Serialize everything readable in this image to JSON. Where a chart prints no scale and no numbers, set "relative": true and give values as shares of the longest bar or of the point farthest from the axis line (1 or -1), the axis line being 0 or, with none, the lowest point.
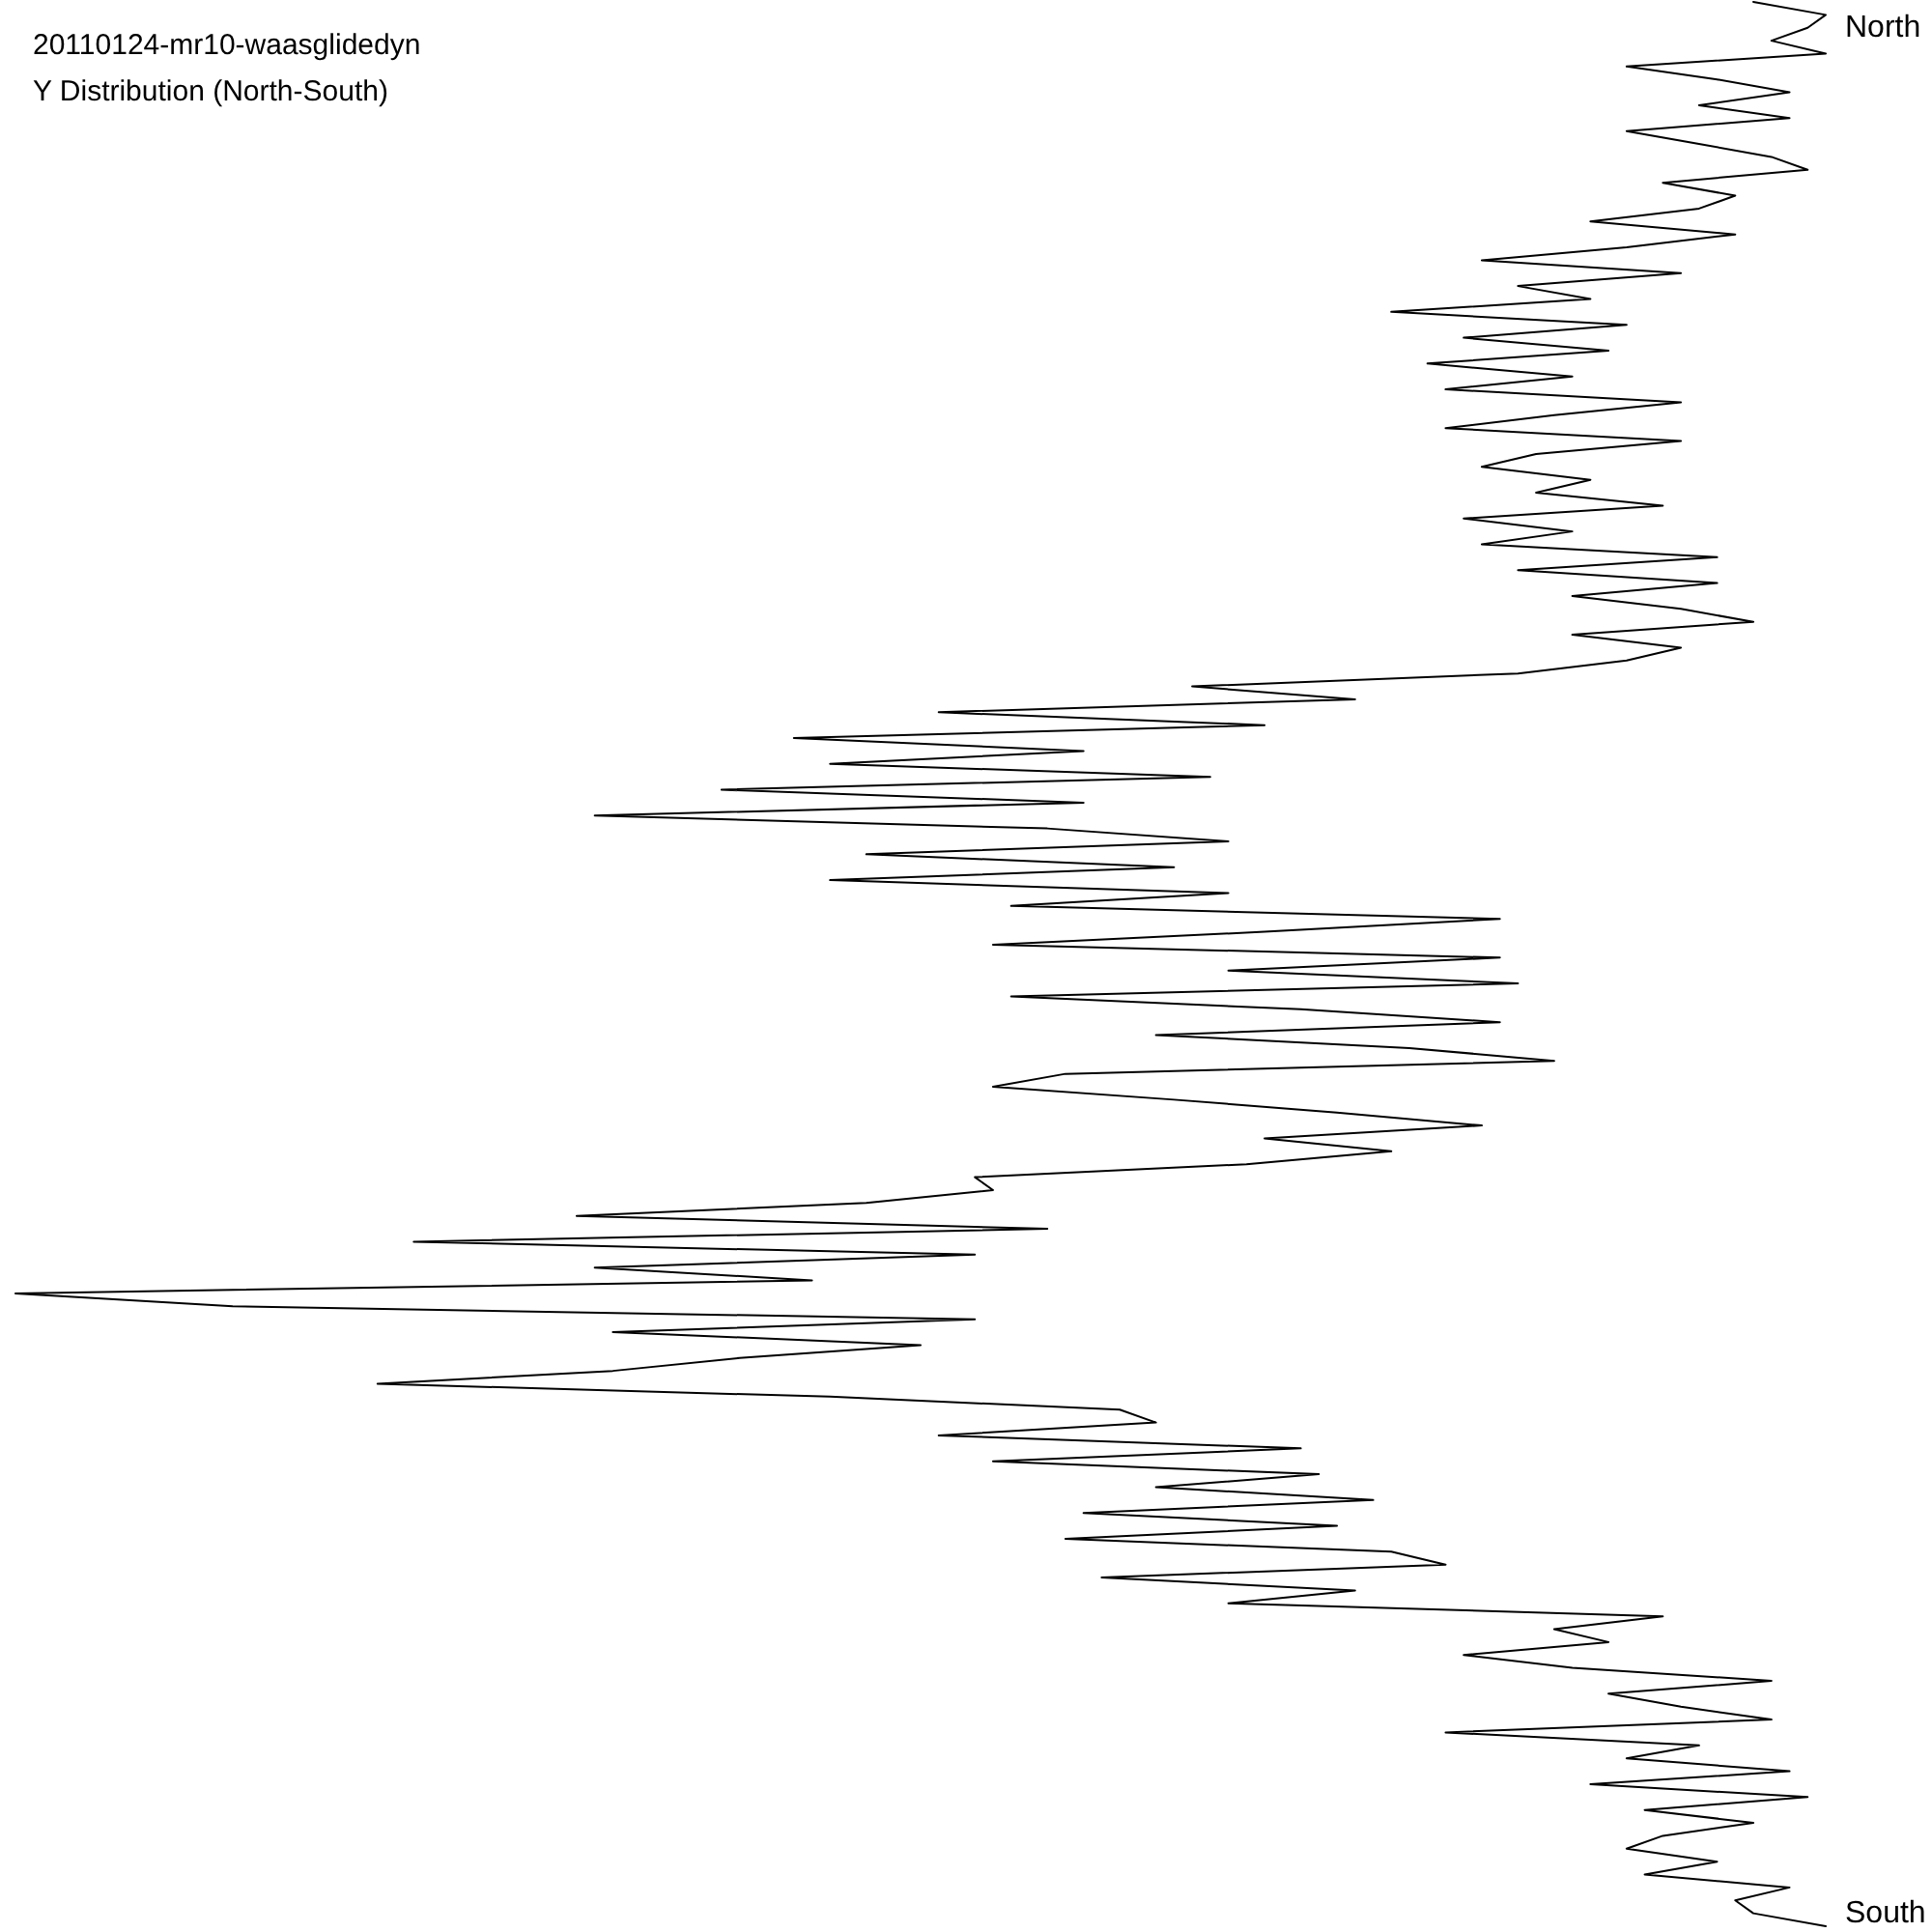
{
  "chart_data": {
    "type": "line",
    "title": "20110124-mr10-waasglidedyn",
    "subtitle": "Y Distribution (North-South)",
    "orientation": "horizontal",
    "relative": true,
    "color": "#000000",
    "marker": "none",
    "categories": [
      null,
      null,
      "North",
      null,
      null,
      null,
      null,
      null,
      null,
      null,
      null,
      null,
      null,
      null,
      null,
      null,
      null,
      null,
      null,
      null,
      null,
      null,
      null,
      null,
      null,
      null,
      null,
      null,
      null,
      null,
      null,
      null,
      null,
      null,
      null,
      null,
      null,
      null,
      null,
      null,
      null,
      null,
      null,
      null,
      null,
      null,
      null,
      null,
      null,
      null,
      null,
      null,
      null,
      null,
      null,
      null,
      null,
      null,
      null,
      null,
      null,
      null,
      null,
      null,
      null,
      null,
      null,
      null,
      null,
      null,
      null,
      null,
      null,
      null,
      null,
      null,
      null,
      null,
      null,
      null,
      null,
      null,
      null,
      null,
      null,
      null,
      null,
      null,
      null,
      null,
      null,
      null,
      null,
      null,
      null,
      null,
      null,
      null,
      null,
      null,
      null,
      null,
      null,
      null,
      null,
      null,
      null,
      null,
      null,
      null,
      null,
      null,
      null,
      null,
      null,
      null,
      null,
      null,
      null,
      null,
      null,
      null,
      null,
      null,
      null,
      null,
      null,
      null,
      null,
      null,
      null,
      null,
      null,
      null,
      null,
      null,
      null,
      null,
      null,
      null,
      null,
      null,
      null,
      null,
      null,
      null,
      null,
      null,
      "South",
      null
    ],
    "values": [
      0.96,
      1,
      0.99,
      0.97,
      1,
      0.89,
      0.94,
      0.98,
      0.93,
      0.98,
      0.89,
      0.93,
      0.97,
      0.99,
      0.91,
      0.95,
      0.93,
      0.87,
      0.95,
      0.89,
      0.81,
      0.92,
      0.83,
      0.87,
      0.76,
      0.89,
      0.8,
      0.88,
      0.78,
      0.86,
      0.79,
      0.92,
      0.85,
      0.79,
      0.92,
      0.84,
      0.81,
      0.87,
      0.84,
      0.91,
      0.8,
      0.86,
      0.81,
      0.94,
      0.83,
      0.94,
      0.86,
      0.92,
      0.96,
      0.86,
      0.92,
      0.89,
      0.83,
      0.65,
      0.74,
      0.51,
      0.69,
      0.43,
      0.59,
      0.45,
      0.66,
      0.39,
      0.59,
      0.32,
      0.57,
      0.67,
      0.47,
      0.64,
      0.45,
      0.67,
      0.55,
      0.82,
      0.69,
      0.54,
      0.82,
      0.67,
      0.83,
      0.55,
      0.71,
      0.82,
      0.63,
      0.77,
      0.85,
      0.58,
      0.54,
      0.64,
      0.73,
      0.81,
      0.69,
      0.76,
      0.68,
      0.53,
      0.54,
      0.47,
      0.31,
      0.57,
      0.22,
      0.53,
      0.32,
      0.44,
      0,
      0.12,
      0.53,
      0.33,
      0.5,
      0.4,
      0.33,
      0.2,
      0.45,
      0.61,
      0.63,
      0.51,
      0.71,
      0.54,
      0.72,
      0.63,
      0.75,
      0.59,
      0.73,
      0.58,
      0.76,
      0.79,
      0.6,
      0.74,
      0.67,
      0.91,
      0.85,
      0.88,
      0.8,
      0.86,
      0.97,
      0.88,
      0.92,
      0.97,
      0.79,
      0.93,
      0.89,
      0.98,
      0.87,
      0.99,
      0.9,
      0.96,
      0.91,
      0.89,
      0.94,
      0.9,
      0.98,
      0.95,
      0.96,
      1
    ]
  }
}
